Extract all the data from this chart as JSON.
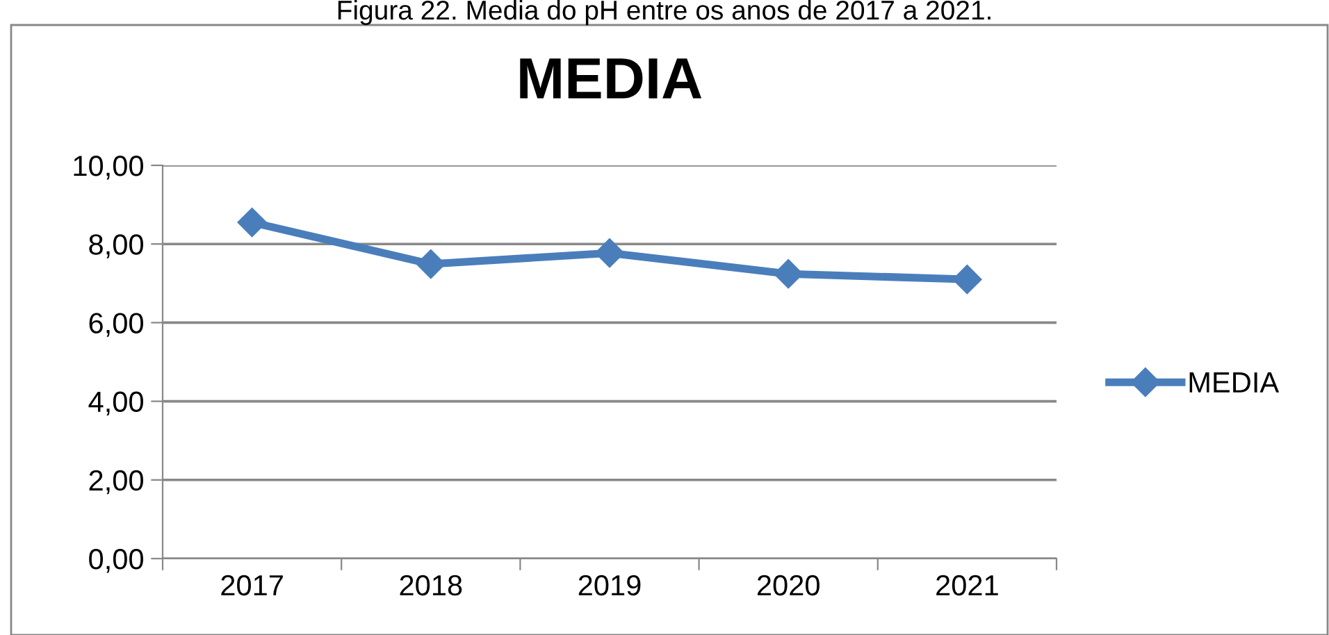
{
  "chart_data": {
    "type": "line",
    "title": "MEDIA",
    "annotations": [
      "Figura 22. Media do pH entre os anos de 2017 a 2021."
    ],
    "categories": [
      "2017",
      "2018",
      "2019",
      "2020",
      "2021"
    ],
    "series": [
      {
        "name": "MEDIA",
        "color": "#4a7ebb",
        "values": [
          8.55,
          7.49,
          7.77,
          7.24,
          7.1
        ]
      }
    ],
    "ylim": [
      0,
      10
    ],
    "yticks": [
      {
        "value": 0,
        "label": "0,00"
      },
      {
        "value": 2,
        "label": "2,00"
      },
      {
        "value": 4,
        "label": "4,00"
      },
      {
        "value": 6,
        "label": "6,00"
      },
      {
        "value": 8,
        "label": "8,00"
      },
      {
        "value": 10,
        "label": "10,00"
      }
    ],
    "grid": "y",
    "legend": "right",
    "marker": "diamond",
    "line_style": "solid"
  }
}
